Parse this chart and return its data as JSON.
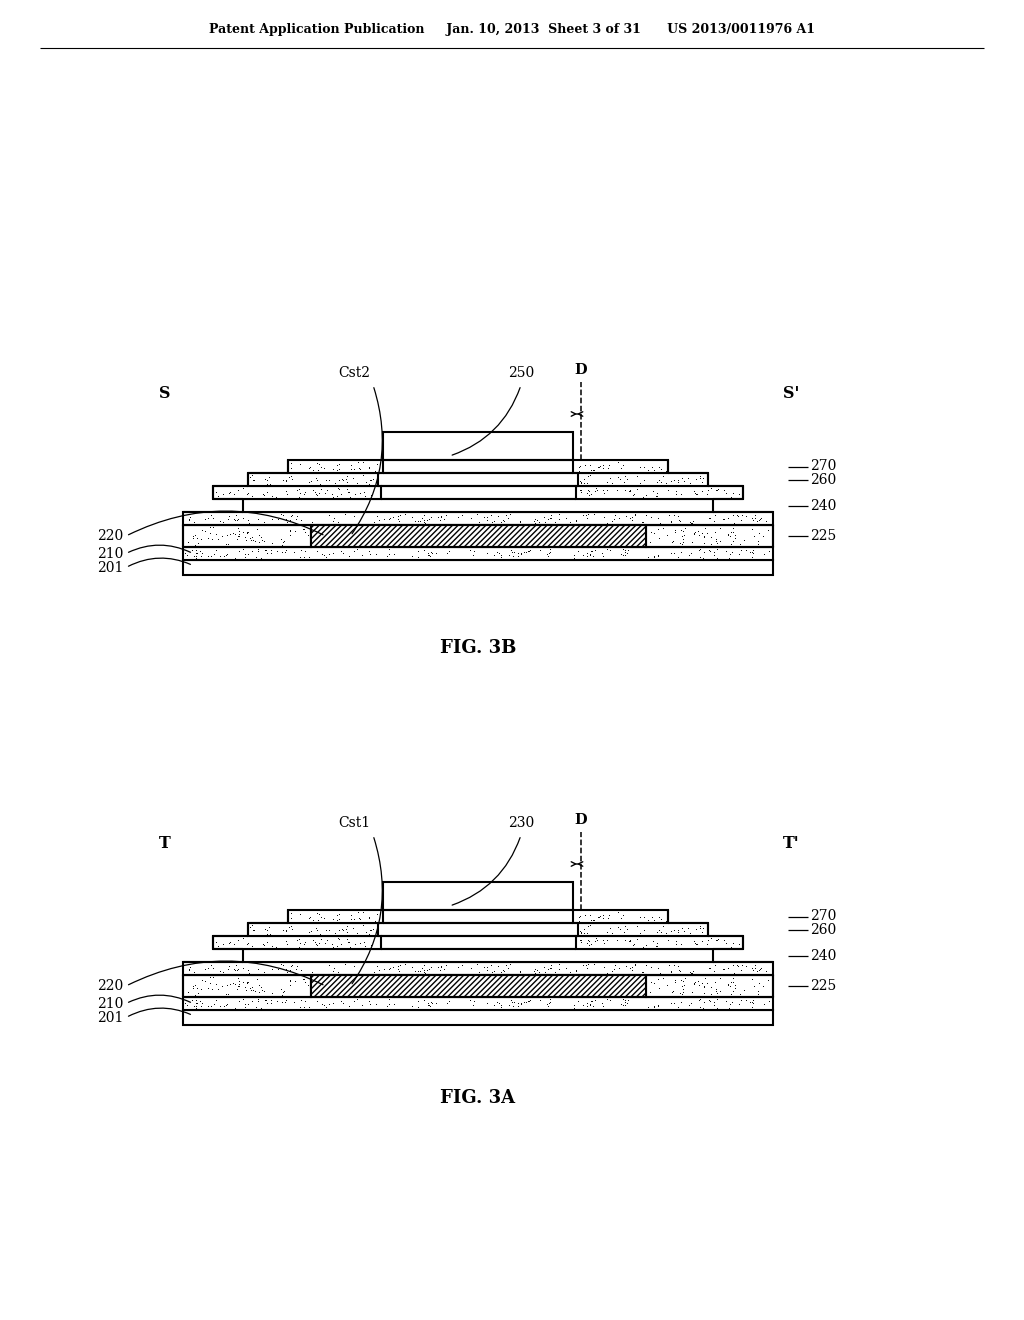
{
  "bg": "#ffffff",
  "header": "Patent Application Publication     Jan. 10, 2013  Sheet 3 of 31      US 2013/0011976 A1",
  "fig3a_caption": "FIG. 3A",
  "fig3b_caption": "FIG. 3B",
  "fig3a": {
    "left_label": "T",
    "right_label": "T'",
    "D_label": "D",
    "cst_label": "Cst1",
    "center_label": "230",
    "right_nums": [
      "270",
      "260",
      "240",
      "225"
    ],
    "left_nums": [
      "220",
      "210",
      "201"
    ]
  },
  "fig3b": {
    "left_label": "S",
    "right_label": "S'",
    "D_label": "D",
    "cst_label": "Cst2",
    "center_label": "250",
    "right_nums": [
      "270",
      "260",
      "240",
      "225"
    ],
    "left_nums": [
      "220",
      "210",
      "201"
    ]
  }
}
